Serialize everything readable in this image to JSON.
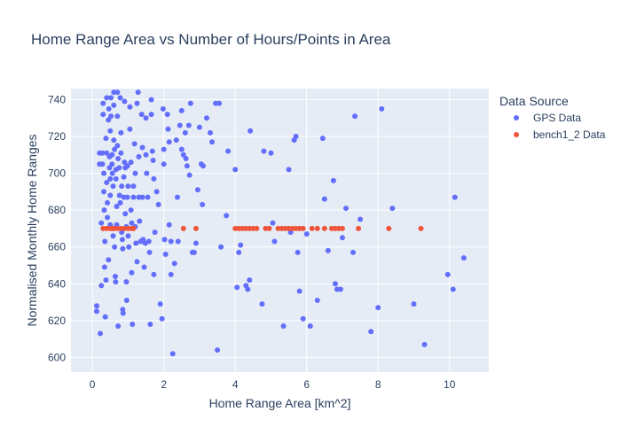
{
  "chart_data": {
    "type": "scatter",
    "title": "Home Range Area vs Number of Hours/Points in Area",
    "xlabel": "Home Range Area [km^2]",
    "ylabel": "Normalised Monthly Home Ranges",
    "xlim": [
      -0.6,
      11.1
    ],
    "ylim": [
      592,
      746
    ],
    "x_ticks": [
      0,
      2,
      4,
      6,
      8,
      10
    ],
    "y_ticks": [
      600,
      620,
      640,
      660,
      680,
      700,
      720,
      740
    ],
    "grid": true,
    "legend": {
      "title": "Data Source",
      "placement": "right"
    },
    "series": [
      {
        "name": "GPS Data",
        "color": "#636efa",
        "points": [
          [
            0.12,
            628
          ],
          [
            0.12,
            625
          ],
          [
            0.2,
            711
          ],
          [
            0.2,
            705
          ],
          [
            0.22,
            613
          ],
          [
            0.25,
            673
          ],
          [
            0.25,
            639
          ],
          [
            0.28,
            711
          ],
          [
            0.28,
            705
          ],
          [
            0.3,
            732
          ],
          [
            0.3,
            738
          ],
          [
            0.32,
            700
          ],
          [
            0.32,
            690
          ],
          [
            0.33,
            680
          ],
          [
            0.34,
            649
          ],
          [
            0.35,
            663
          ],
          [
            0.36,
            622
          ],
          [
            0.38,
            642
          ],
          [
            0.38,
            719
          ],
          [
            0.4,
            741
          ],
          [
            0.4,
            711
          ],
          [
            0.4,
            695
          ],
          [
            0.42,
            684
          ],
          [
            0.42,
            676
          ],
          [
            0.45,
            653
          ],
          [
            0.45,
            729
          ],
          [
            0.46,
            735
          ],
          [
            0.48,
            709
          ],
          [
            0.48,
            703
          ],
          [
            0.5,
            723
          ],
          [
            0.5,
            697
          ],
          [
            0.5,
            688
          ],
          [
            0.5,
            672
          ],
          [
            0.52,
            741
          ],
          [
            0.52,
            731
          ],
          [
            0.55,
            710
          ],
          [
            0.55,
            705
          ],
          [
            0.56,
            700
          ],
          [
            0.58,
            693
          ],
          [
            0.58,
            666
          ],
          [
            0.6,
            744
          ],
          [
            0.6,
            737
          ],
          [
            0.6,
            718
          ],
          [
            0.62,
            713
          ],
          [
            0.62,
            660
          ],
          [
            0.64,
            644
          ],
          [
            0.65,
            641
          ],
          [
            0.66,
            702
          ],
          [
            0.66,
            697
          ],
          [
            0.68,
            682
          ],
          [
            0.68,
            672
          ],
          [
            0.7,
            744
          ],
          [
            0.7,
            731
          ],
          [
            0.7,
            715
          ],
          [
            0.72,
            708
          ],
          [
            0.72,
            617
          ],
          [
            0.75,
            703
          ],
          [
            0.76,
            688
          ],
          [
            0.78,
            684
          ],
          [
            0.78,
            741
          ],
          [
            0.8,
            722
          ],
          [
            0.8,
            711
          ],
          [
            0.82,
            693
          ],
          [
            0.82,
            668
          ],
          [
            0.84,
            664
          ],
          [
            0.85,
            659
          ],
          [
            0.85,
            626
          ],
          [
            0.86,
            624
          ],
          [
            0.88,
            698
          ],
          [
            0.88,
            687
          ],
          [
            0.9,
            739
          ],
          [
            0.9,
            706
          ],
          [
            0.92,
            703
          ],
          [
            0.92,
            678
          ],
          [
            0.95,
            671
          ],
          [
            0.95,
            641
          ],
          [
            0.96,
            631
          ],
          [
            0.98,
            704
          ],
          [
            0.98,
            687
          ],
          [
            1.0,
            693
          ],
          [
            1.0,
            666
          ],
          [
            1.02,
            660
          ],
          [
            1.05,
            736
          ],
          [
            1.05,
            724
          ],
          [
            1.08,
            706
          ],
          [
            1.08,
            680
          ],
          [
            1.1,
            673
          ],
          [
            1.1,
            646
          ],
          [
            1.12,
            618
          ],
          [
            1.15,
            693
          ],
          [
            1.15,
            687
          ],
          [
            1.18,
            716
          ],
          [
            1.2,
            700
          ],
          [
            1.2,
            671
          ],
          [
            1.22,
            662
          ],
          [
            1.25,
            652
          ],
          [
            1.25,
            738
          ],
          [
            1.28,
            744
          ],
          [
            1.3,
            709
          ],
          [
            1.3,
            687
          ],
          [
            1.32,
            674
          ],
          [
            1.35,
            663
          ],
          [
            1.38,
            732
          ],
          [
            1.4,
            714
          ],
          [
            1.4,
            687
          ],
          [
            1.42,
            664
          ],
          [
            1.45,
            649
          ],
          [
            1.48,
            662
          ],
          [
            1.5,
            730
          ],
          [
            1.5,
            710
          ],
          [
            1.52,
            700
          ],
          [
            1.55,
            687
          ],
          [
            1.58,
            663
          ],
          [
            1.6,
            657
          ],
          [
            1.62,
            618
          ],
          [
            1.65,
            740
          ],
          [
            1.65,
            732
          ],
          [
            1.68,
            712
          ],
          [
            1.7,
            707
          ],
          [
            1.72,
            697
          ],
          [
            1.72,
            645
          ],
          [
            1.75,
            668
          ],
          [
            1.8,
            690
          ],
          [
            1.85,
            683
          ],
          [
            1.9,
            629
          ],
          [
            1.95,
            621
          ],
          [
            1.98,
            735
          ],
          [
            2.0,
            713
          ],
          [
            2.0,
            705
          ],
          [
            2.02,
            664
          ],
          [
            2.05,
            656
          ],
          [
            2.1,
            732
          ],
          [
            2.12,
            724
          ],
          [
            2.15,
            717
          ],
          [
            2.15,
            672
          ],
          [
            2.2,
            663
          ],
          [
            2.2,
            645
          ],
          [
            2.25,
            602
          ],
          [
            2.3,
            651
          ],
          [
            2.35,
            718
          ],
          [
            2.38,
            687
          ],
          [
            2.4,
            663
          ],
          [
            2.45,
            726
          ],
          [
            2.5,
            734
          ],
          [
            2.5,
            713
          ],
          [
            2.55,
            710
          ],
          [
            2.6,
            722
          ],
          [
            2.62,
            708
          ],
          [
            2.65,
            704
          ],
          [
            2.7,
            726
          ],
          [
            2.72,
            699
          ],
          [
            2.75,
            738
          ],
          [
            2.8,
            657
          ],
          [
            2.85,
            657
          ],
          [
            2.9,
            662
          ],
          [
            2.95,
            691
          ],
          [
            3.0,
            725
          ],
          [
            3.05,
            705
          ],
          [
            3.08,
            683
          ],
          [
            3.1,
            704
          ],
          [
            3.2,
            730
          ],
          [
            3.3,
            722
          ],
          [
            3.35,
            717
          ],
          [
            3.45,
            738
          ],
          [
            3.5,
            604
          ],
          [
            3.55,
            738
          ],
          [
            3.6,
            660
          ],
          [
            3.75,
            677
          ],
          [
            3.8,
            712
          ],
          [
            4.0,
            702
          ],
          [
            4.05,
            638
          ],
          [
            4.1,
            657
          ],
          [
            4.15,
            661
          ],
          [
            4.3,
            639
          ],
          [
            4.35,
            637
          ],
          [
            4.4,
            642
          ],
          [
            4.42,
            723
          ],
          [
            4.75,
            629
          ],
          [
            4.8,
            712
          ],
          [
            5.0,
            711
          ],
          [
            5.05,
            673
          ],
          [
            5.1,
            663
          ],
          [
            5.35,
            617
          ],
          [
            5.5,
            702
          ],
          [
            5.55,
            668
          ],
          [
            5.65,
            718
          ],
          [
            5.7,
            720
          ],
          [
            5.75,
            657
          ],
          [
            5.8,
            636
          ],
          [
            5.9,
            621
          ],
          [
            6.0,
            667
          ],
          [
            6.1,
            617
          ],
          [
            6.3,
            631
          ],
          [
            6.45,
            719
          ],
          [
            6.5,
            686
          ],
          [
            6.6,
            658
          ],
          [
            6.75,
            696
          ],
          [
            6.8,
            640
          ],
          [
            6.85,
            637
          ],
          [
            6.95,
            637
          ],
          [
            7.0,
            665
          ],
          [
            7.1,
            681
          ],
          [
            7.3,
            657
          ],
          [
            7.35,
            731
          ],
          [
            7.5,
            675
          ],
          [
            7.8,
            614
          ],
          [
            8.0,
            627
          ],
          [
            8.1,
            735
          ],
          [
            8.4,
            681
          ],
          [
            9.0,
            629
          ],
          [
            9.3,
            607
          ],
          [
            9.95,
            645
          ],
          [
            10.1,
            637
          ],
          [
            10.15,
            687
          ],
          [
            10.4,
            654
          ]
        ]
      },
      {
        "name": "bench1_2 Data",
        "color": "#ef553b",
        "points": [
          [
            0.3,
            670
          ],
          [
            0.4,
            670
          ],
          [
            0.5,
            670
          ],
          [
            0.55,
            670
          ],
          [
            0.6,
            670
          ],
          [
            0.7,
            670
          ],
          [
            0.8,
            670
          ],
          [
            0.9,
            670
          ],
          [
            1.0,
            670
          ],
          [
            1.1,
            670
          ],
          [
            1.15,
            670
          ],
          [
            2.55,
            670
          ],
          [
            2.9,
            670
          ],
          [
            4.0,
            670
          ],
          [
            4.1,
            670
          ],
          [
            4.2,
            670
          ],
          [
            4.3,
            670
          ],
          [
            4.4,
            670
          ],
          [
            4.5,
            670
          ],
          [
            4.6,
            670
          ],
          [
            4.85,
            670
          ],
          [
            4.95,
            670
          ],
          [
            5.2,
            670
          ],
          [
            5.3,
            670
          ],
          [
            5.4,
            670
          ],
          [
            5.5,
            670
          ],
          [
            5.6,
            670
          ],
          [
            5.7,
            670
          ],
          [
            5.8,
            670
          ],
          [
            5.9,
            670
          ],
          [
            6.15,
            670
          ],
          [
            6.3,
            670
          ],
          [
            6.5,
            670
          ],
          [
            6.7,
            670
          ],
          [
            6.8,
            670
          ],
          [
            6.9,
            670
          ],
          [
            7.0,
            670
          ],
          [
            7.45,
            670
          ],
          [
            8.3,
            670
          ],
          [
            9.2,
            670
          ]
        ]
      }
    ]
  }
}
